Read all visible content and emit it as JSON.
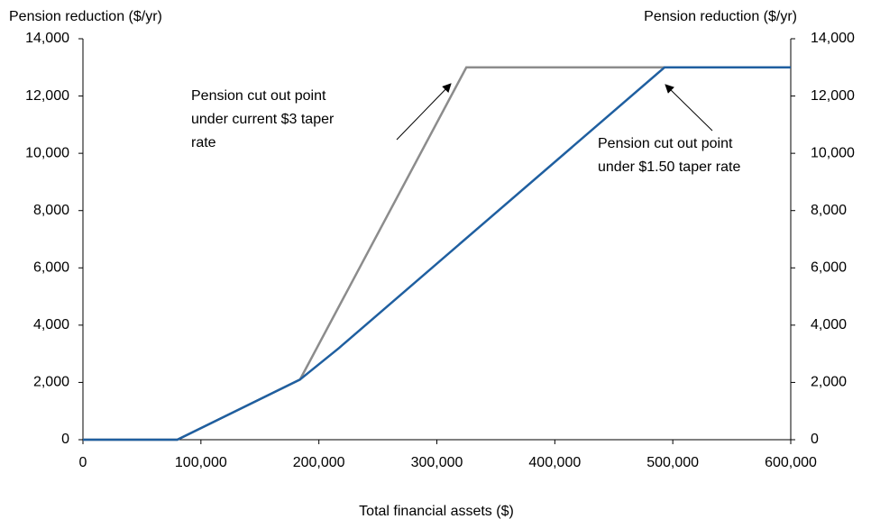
{
  "chart_data": {
    "type": "line",
    "y_label": "Pension reduction ($/yr)",
    "y2_label": "Pension reduction ($/yr)",
    "x_label": "Total financial assets ($)",
    "xlim": [
      0,
      600000
    ],
    "xticks": [
      0,
      {
        "value": 100000,
        "label": "100,000"
      },
      {
        "value": 200000,
        "label": "200,000"
      },
      {
        "value": 300000,
        "label": "300,000"
      },
      {
        "value": 400000,
        "label": "400,000"
      },
      {
        "value": 500000,
        "label": "500,000"
      },
      {
        "value": 600000,
        "label": "600,000"
      }
    ],
    "ylim": [
      0,
      14000
    ],
    "yticks": [
      0,
      {
        "value": 2000,
        "label": "2,000"
      },
      {
        "value": 4000,
        "label": "4,000"
      },
      {
        "value": 6000,
        "label": "6,000"
      },
      {
        "value": 8000,
        "label": "8,000"
      },
      {
        "value": 10000,
        "label": "10,000"
      },
      {
        "value": 12000,
        "label": "12,000"
      },
      {
        "value": 14000,
        "label": "14,000"
      }
    ],
    "y2lim": [
      0,
      14000
    ],
    "y2ticks": [
      0,
      {
        "value": 2000,
        "label": "2,000"
      },
      {
        "value": 4000,
        "label": "4,000"
      },
      {
        "value": 6000,
        "label": "6,000"
      },
      {
        "value": 8000,
        "label": "8,000"
      },
      {
        "value": 10000,
        "label": "10,000"
      },
      {
        "value": 12000,
        "label": "12,000"
      },
      {
        "value": 14000,
        "label": "14,000"
      }
    ],
    "series": [
      {
        "color": "#8c8c8c",
        "x": [
          0,
          80000,
          184000,
          325000,
          600000
        ],
        "values": [
          0,
          0,
          2100,
          13000,
          13000
        ]
      },
      {
        "color": "#1f5fa0",
        "x": [
          0,
          80000,
          184000,
          217000,
          493000,
          600000
        ],
        "values": [
          0,
          0,
          2100,
          3200,
          13000,
          13000
        ]
      }
    ],
    "annotations": [
      {
        "lines": [
          "Pension cut out point",
          "under current $3 taper",
          "rate"
        ]
      },
      {
        "lines": [
          "Pension cut out point",
          "under $1.50 taper rate"
        ]
      }
    ]
  }
}
